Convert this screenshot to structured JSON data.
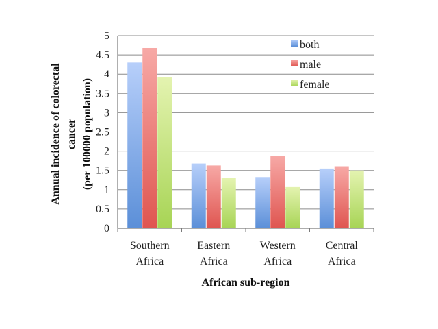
{
  "chart_data": {
    "type": "bar",
    "title": "",
    "xlabel": "African sub-region",
    "ylabel_lines": [
      "Annual incidence of colorectal",
      "cancer",
      "(per 100000 population)"
    ],
    "categories": [
      [
        "Southern",
        "Africa"
      ],
      [
        "Eastern",
        "Africa"
      ],
      [
        "Western",
        "Africa"
      ],
      [
        "Central",
        "Africa"
      ]
    ],
    "series": [
      {
        "name": "both",
        "values": [
          4.3,
          1.68,
          1.33,
          1.55
        ],
        "color_top": "#b7cffa",
        "color_bottom": "#5b8fd8"
      },
      {
        "name": "male",
        "values": [
          4.68,
          1.63,
          1.88,
          1.61
        ],
        "color_top": "#f7a9a6",
        "color_bottom": "#df5550"
      },
      {
        "name": "female",
        "values": [
          3.92,
          1.3,
          1.07,
          1.5
        ],
        "color_top": "#e4f3b0",
        "color_bottom": "#a7d455"
      }
    ],
    "ylim": [
      0,
      5
    ],
    "yticks": [
      "0",
      "0.5",
      "1",
      "1.5",
      "2",
      "2.5",
      "3",
      "3.5",
      "4",
      "4.5",
      "5"
    ],
    "grid": true,
    "legend_position": "top-right"
  }
}
